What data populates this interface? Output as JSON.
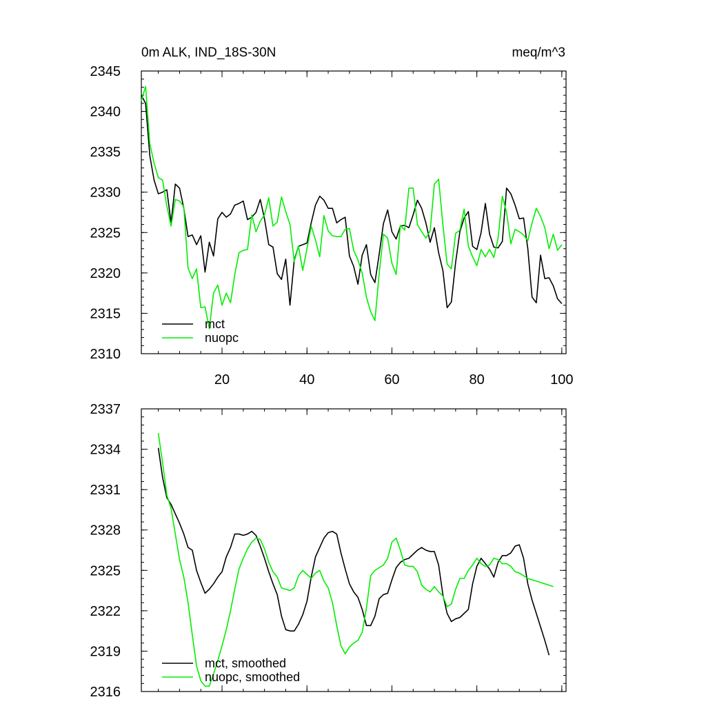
{
  "chart_data": [
    {
      "type": "line",
      "title_left": "0m ALK, IND_18S-30N",
      "title_right": "meq/m^3",
      "xlabel": "",
      "ylabel": "",
      "xlim": [
        1,
        101
      ],
      "ylim": [
        2310,
        2345
      ],
      "xticks": [
        20,
        40,
        60,
        80,
        100
      ],
      "yticks": [
        2310,
        2315,
        2320,
        2325,
        2330,
        2335,
        2340,
        2345
      ],
      "legend_position": "bottom-left",
      "series": [
        {
          "name": "mct",
          "color": "#000000",
          "x": [
            1,
            2,
            3,
            4,
            5,
            6,
            7,
            8,
            9,
            10,
            11,
            12,
            13,
            14,
            15,
            16,
            17,
            18,
            19,
            20,
            21,
            22,
            23,
            24,
            25,
            26,
            27,
            28,
            29,
            30,
            31,
            32,
            33,
            34,
            35,
            36,
            37,
            38,
            39,
            40,
            41,
            42,
            43,
            44,
            45,
            46,
            47,
            48,
            49,
            50,
            51,
            52,
            53,
            54,
            55,
            56,
            57,
            58,
            59,
            60,
            61,
            62,
            63,
            64,
            65,
            66,
            67,
            68,
            69,
            70,
            71,
            72,
            73,
            74,
            75,
            76,
            77,
            78,
            79,
            80,
            81,
            82,
            83,
            84,
            85,
            86,
            87,
            88,
            89,
            90,
            91,
            92,
            93,
            94,
            95,
            96,
            97,
            98,
            99,
            100
          ],
          "values": [
            2342,
            2341,
            2334.5,
            2331.5,
            2329.8,
            2330,
            2330.3,
            2326.2,
            2331,
            2330.5,
            2328,
            2324.5,
            2324.7,
            2323.5,
            2324.6,
            2320.1,
            2323.8,
            2322.1,
            2326.7,
            2327.5,
            2326.9,
            2327.3,
            2328.4,
            2328.6,
            2328.9,
            2326.6,
            2326.9,
            2327.5,
            2329.1,
            2326.7,
            2323.5,
            2323.2,
            2319.9,
            2319.2,
            2321.7,
            2316,
            2321.6,
            2323.3,
            2323.5,
            2323.7,
            2326.2,
            2328.4,
            2329.5,
            2329,
            2328,
            2328,
            2326.2,
            2326.6,
            2326.9,
            2322.1,
            2320.8,
            2318.6,
            2322.2,
            2323.5,
            2319.8,
            2318.8,
            2322.3,
            2326.1,
            2327.8,
            2325.1,
            2324.2,
            2325.8,
            2325.9,
            2325.6,
            2327.2,
            2329,
            2328,
            2326.2,
            2323.8,
            2325.6,
            2322.5,
            2320.3,
            2315.7,
            2316.4,
            2321.3,
            2325.1,
            2326.8,
            2327.6,
            2323.3,
            2322.9,
            2325,
            2328.6,
            2324.8,
            2323.2,
            2323.1,
            2323.9,
            2330.5,
            2329.8,
            2328.4,
            2326.7,
            2326.8,
            2323,
            2317,
            2316.3,
            2322.2,
            2319.3,
            2319.4,
            2318.4,
            2316.8,
            2316.2
          ]
        },
        {
          "name": "nuopc",
          "color": "#00ee00",
          "x": [
            1,
            2,
            3,
            4,
            5,
            6,
            7,
            8,
            9,
            10,
            11,
            12,
            13,
            14,
            15,
            16,
            17,
            18,
            19,
            20,
            21,
            22,
            23,
            24,
            25,
            26,
            27,
            28,
            29,
            30,
            31,
            32,
            33,
            34,
            35,
            36,
            37,
            38,
            39,
            40,
            41,
            42,
            43,
            44,
            45,
            46,
            47,
            48,
            49,
            50,
            51,
            52,
            53,
            54,
            55,
            56,
            57,
            58,
            59,
            60,
            61,
            62,
            63,
            64,
            65,
            66,
            67,
            68,
            69,
            70,
            71,
            72,
            73,
            74,
            75,
            76,
            77,
            78,
            79,
            80,
            81,
            82,
            83,
            84,
            85,
            86,
            87,
            88,
            89,
            90,
            91,
            92,
            93,
            94,
            95,
            96,
            97,
            98,
            99,
            100
          ],
          "values": [
            2341.3,
            2343.1,
            2336,
            2333.6,
            2331.8,
            2331.5,
            2328.3,
            2325.8,
            2329.1,
            2328.9,
            2328.2,
            2320.6,
            2319.3,
            2320.5,
            2315.7,
            2315.8,
            2313.1,
            2317.5,
            2318.5,
            2316,
            2317.5,
            2316.3,
            2319.8,
            2322.5,
            2322.8,
            2322.9,
            2327.2,
            2325.1,
            2326.4,
            2327.2,
            2329.3,
            2325.8,
            2326.3,
            2329.4,
            2327.6,
            2326,
            2321.4,
            2323.3,
            2320.3,
            2323,
            2325.8,
            2324.1,
            2322,
            2327.1,
            2325.2,
            2324.6,
            2324.5,
            2324.5,
            2325.4,
            2325.5,
            2322.8,
            2321.6,
            2320,
            2317,
            2315.2,
            2314.1,
            2319.9,
            2324.8,
            2324.3,
            2321.2,
            2319.8,
            2325.9,
            2325.3,
            2330.5,
            2330.5,
            2326,
            2325.1,
            2324.3,
            2325.2,
            2331,
            2331.6,
            2326,
            2321.1,
            2320.5,
            2324.9,
            2325.3,
            2327.9,
            2323.3,
            2322,
            2320.9,
            2322.9,
            2322,
            2322.9,
            2321.9,
            2324.3,
            2329.5,
            2327.5,
            2323.6,
            2325.4,
            2325.1,
            2324.7,
            2324,
            2326.2,
            2328,
            2327,
            2325.6,
            2323,
            2324.8,
            2322.8,
            2323.5
          ]
        }
      ]
    },
    {
      "type": "line",
      "title_left": "",
      "title_right": "",
      "xlabel": "",
      "ylabel": "",
      "xlim": [
        1,
        101
      ],
      "ylim": [
        2316,
        2337
      ],
      "xticks": [
        20,
        40,
        60,
        80,
        100
      ],
      "yticks": [
        2316,
        2319,
        2322,
        2325,
        2328,
        2331,
        2334,
        2337
      ],
      "legend_position": "bottom-left",
      "series": [
        {
          "name": "mct, smoothed",
          "color": "#000000",
          "x": [
            5,
            6,
            7,
            8,
            9,
            10,
            11,
            12,
            13,
            14,
            15,
            16,
            17,
            18,
            19,
            20,
            21,
            22,
            23,
            24,
            25,
            26,
            27,
            28,
            29,
            30,
            31,
            32,
            33,
            34,
            35,
            36,
            37,
            38,
            39,
            40,
            41,
            42,
            43,
            44,
            45,
            46,
            47,
            48,
            49,
            50,
            51,
            52,
            53,
            54,
            55,
            56,
            57,
            58,
            59,
            60,
            61,
            62,
            63,
            64,
            65,
            66,
            67,
            68,
            69,
            70,
            71,
            72,
            73,
            74,
            75,
            76,
            77,
            78,
            79,
            80,
            81,
            82,
            83,
            84,
            85,
            86,
            87,
            88,
            89,
            90,
            91,
            92,
            93,
            94,
            95,
            96,
            97
          ],
          "values": [
            2334.1,
            2331.9,
            2330.4,
            2329.9,
            2329.2,
            2328.5,
            2327.7,
            2326.7,
            2326.5,
            2325,
            2324.1,
            2323.3,
            2323.6,
            2324,
            2324.5,
            2324.9,
            2326,
            2326.7,
            2327.7,
            2327.7,
            2327.6,
            2327.7,
            2327.9,
            2327.6,
            2326.8,
            2325.9,
            2324.9,
            2324,
            2323.2,
            2321.6,
            2320.6,
            2320.5,
            2320.5,
            2321,
            2321.7,
            2322.7,
            2324.5,
            2326,
            2326.7,
            2327.4,
            2327.8,
            2327.9,
            2327.7,
            2326.3,
            2325.1,
            2324,
            2323.4,
            2323,
            2322.1,
            2320.9,
            2320.9,
            2321.6,
            2322.9,
            2323.2,
            2323.3,
            2324.3,
            2325.2,
            2325.6,
            2325.8,
            2325.9,
            2326.2,
            2326.5,
            2326.7,
            2326.5,
            2326.4,
            2326.4,
            2325.4,
            2323.2,
            2321.8,
            2321.2,
            2321.4,
            2321.5,
            2321.8,
            2322.1,
            2324,
            2325.3,
            2325.9,
            2325.5,
            2325.1,
            2324.5,
            2325.6,
            2326.1,
            2326.1,
            2326.3,
            2326.8,
            2326.9,
            2325.9,
            2324,
            2322.8,
            2321.8,
            2320.8,
            2319.8,
            2318.7
          ]
        },
        {
          "name": "nuopc, smoothed",
          "color": "#00ee00",
          "x": [
            5,
            6,
            7,
            8,
            9,
            10,
            11,
            12,
            13,
            14,
            15,
            16,
            17,
            18,
            19,
            20,
            21,
            22,
            23,
            24,
            25,
            26,
            27,
            28,
            29,
            30,
            31,
            32,
            33,
            34,
            35,
            36,
            37,
            38,
            39,
            40,
            41,
            42,
            43,
            44,
            45,
            46,
            47,
            48,
            49,
            50,
            51,
            52,
            53,
            54,
            55,
            56,
            57,
            58,
            59,
            60,
            61,
            62,
            63,
            64,
            65,
            66,
            67,
            68,
            69,
            70,
            71,
            72,
            73,
            74,
            75,
            76,
            77,
            78,
            79,
            80,
            81,
            82,
            83,
            84,
            85,
            86,
            87,
            88,
            89,
            90,
            91,
            92,
            93,
            94,
            95,
            96,
            97,
            98
          ],
          "values": [
            2335.2,
            2333,
            2330.6,
            2329.6,
            2327.7,
            2325.8,
            2324.5,
            2322.6,
            2320.2,
            2317.9,
            2316.8,
            2316.4,
            2316.4,
            2317.3,
            2318.3,
            2319.4,
            2320.6,
            2322,
            2323.6,
            2325.1,
            2325.9,
            2326.6,
            2327.1,
            2327.4,
            2327.3,
            2326.6,
            2325.6,
            2324.9,
            2324.5,
            2323.7,
            2323.6,
            2323.5,
            2323.7,
            2324.6,
            2325,
            2324.7,
            2324.4,
            2324.8,
            2325,
            2324.2,
            2323.7,
            2322.6,
            2320.9,
            2319.4,
            2318.8,
            2319.3,
            2319.6,
            2319.8,
            2320.4,
            2322.2,
            2324.6,
            2325,
            2325.2,
            2325.4,
            2325.9,
            2327.1,
            2327.4,
            2326.5,
            2325.4,
            2325.3,
            2325.3,
            2324.9,
            2323.9,
            2323.6,
            2323.4,
            2323.8,
            2323.4,
            2323.1,
            2322.3,
            2322.5,
            2323.6,
            2324.4,
            2324.4,
            2325,
            2325.4,
            2325.9,
            2325.5,
            2325.3,
            2325.4,
            2325.9,
            2325.8,
            2325.5,
            2325.5,
            2325.3,
            2324.9,
            2324.8,
            2324.6,
            2324.4,
            2324.3,
            2324.2,
            2324.1,
            2324,
            2323.9,
            2323.8
          ]
        }
      ]
    }
  ]
}
